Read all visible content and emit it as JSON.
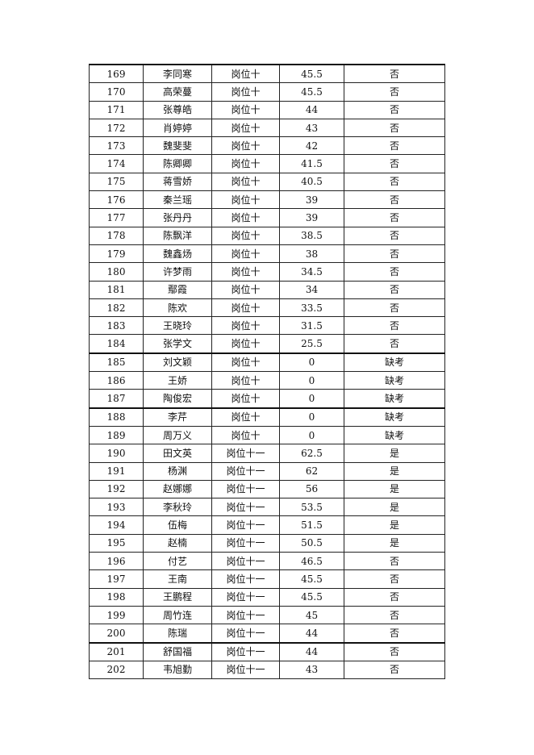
{
  "table": {
    "rows": [
      [
        "169",
        "李同寒",
        "岗位十",
        "45.5",
        "否"
      ],
      [
        "170",
        "高荣蔓",
        "岗位十",
        "45.5",
        "否"
      ],
      [
        "171",
        "张尊皓",
        "岗位十",
        "44",
        "否"
      ],
      [
        "172",
        "肖婷婷",
        "岗位十",
        "43",
        "否"
      ],
      [
        "173",
        "魏斐斐",
        "岗位十",
        "42",
        "否"
      ],
      [
        "174",
        "陈卿卿",
        "岗位十",
        "41.5",
        "否"
      ],
      [
        "175",
        "蒋雪娇",
        "岗位十",
        "40.5",
        "否"
      ],
      [
        "176",
        "秦兰瑶",
        "岗位十",
        "39",
        "否"
      ],
      [
        "177",
        "张丹丹",
        "岗位十",
        "39",
        "否"
      ],
      [
        "178",
        "陈飘洋",
        "岗位十",
        "38.5",
        "否"
      ],
      [
        "179",
        "魏鑫炀",
        "岗位十",
        "38",
        "否"
      ],
      [
        "180",
        "许梦雨",
        "岗位十",
        "34.5",
        "否"
      ],
      [
        "181",
        "鄢霞",
        "岗位十",
        "34",
        "否"
      ],
      [
        "182",
        "陈欢",
        "岗位十",
        "33.5",
        "否"
      ],
      [
        "183",
        "王晓玲",
        "岗位十",
        "31.5",
        "否"
      ],
      [
        "184",
        "张学文",
        "岗位十",
        "25.5",
        "否"
      ],
      [
        "185",
        "刘文颖",
        "岗位十",
        "0",
        "缺考"
      ],
      [
        "186",
        "王娇",
        "岗位十",
        "0",
        "缺考"
      ],
      [
        "187",
        "陶俊宏",
        "岗位十",
        "0",
        "缺考"
      ],
      [
        "188",
        "李芹",
        "岗位十",
        "0",
        "缺考"
      ],
      [
        "189",
        "周万义",
        "岗位十",
        "0",
        "缺考"
      ],
      [
        "190",
        "田文英",
        "岗位十一",
        "62.5",
        "是"
      ],
      [
        "191",
        "杨渊",
        "岗位十一",
        "62",
        "是"
      ],
      [
        "192",
        "赵娜娜",
        "岗位十一",
        "56",
        "是"
      ],
      [
        "193",
        "李秋玲",
        "岗位十一",
        "53.5",
        "是"
      ],
      [
        "194",
        "伍梅",
        "岗位十一",
        "51.5",
        "是"
      ],
      [
        "195",
        "赵楠",
        "岗位十一",
        "50.5",
        "是"
      ],
      [
        "196",
        "付艺",
        "岗位十一",
        "46.5",
        "否"
      ],
      [
        "197",
        "王南",
        "岗位十一",
        "45.5",
        "否"
      ],
      [
        "198",
        "王鹏程",
        "岗位十一",
        "45.5",
        "否"
      ],
      [
        "199",
        "周竹连",
        "岗位十一",
        "45",
        "否"
      ],
      [
        "200",
        "陈瑞",
        "岗位十一",
        "44",
        "否"
      ],
      [
        "201",
        "舒国福",
        "岗位十一",
        "44",
        "否"
      ],
      [
        "202",
        "韦旭勤",
        "岗位十一",
        "43",
        "否"
      ]
    ]
  }
}
